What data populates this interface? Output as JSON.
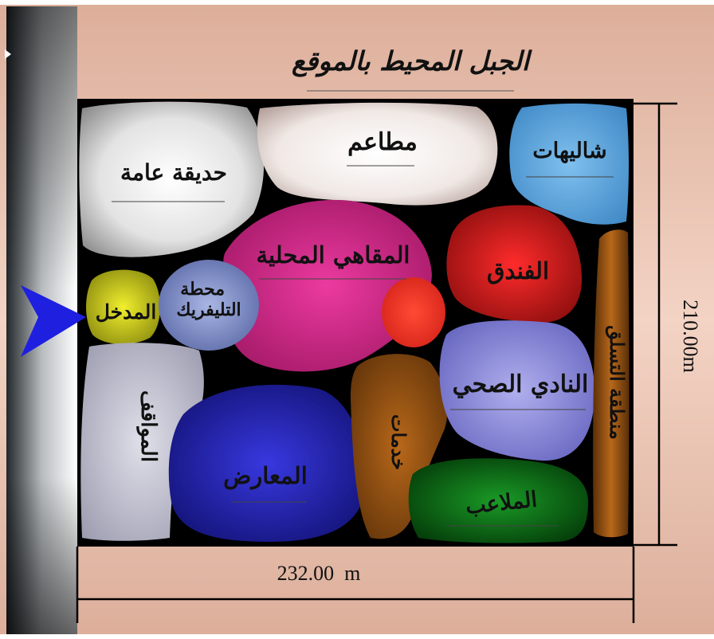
{
  "title": "الجبل المحيط بالموقع",
  "dimensions": {
    "width": "232.00  m",
    "height": "210.00m"
  },
  "zones": [
    {
      "id": "public-garden",
      "label": "حديقة عامة",
      "color": "#e6e6e6"
    },
    {
      "id": "restaurants",
      "label": "مطاعم",
      "color": "#f2ebe8"
    },
    {
      "id": "chalets",
      "label": "شاليهات",
      "color": "#5ea9de"
    },
    {
      "id": "local-cafes",
      "label": "المقاهي المحلية",
      "color": "#dd2f92"
    },
    {
      "id": "hotel",
      "label": "الفندق",
      "color": "#d71e1e"
    },
    {
      "id": "red-circle",
      "label": "",
      "color": "#ff3b25"
    },
    {
      "id": "entrance",
      "label": "المدخل",
      "color": "#d6d61d"
    },
    {
      "id": "cable-car-station",
      "label": "محطة التليفريك",
      "color": "#8a9cd2"
    },
    {
      "id": "parking",
      "label": "المواقف",
      "color": "#c2c2d2"
    },
    {
      "id": "exhibitions",
      "label": "المعارض",
      "color": "#2b2bd0"
    },
    {
      "id": "services",
      "label": "خدمات",
      "color": "#a35a12"
    },
    {
      "id": "health-club",
      "label": "النادي الصحي",
      "color": "#9a99e8"
    },
    {
      "id": "playgrounds",
      "label": "الملاعب",
      "color": "#13871f"
    },
    {
      "id": "climbing-area",
      "label": "منطقة التسلق",
      "color": "#a35a12"
    }
  ],
  "colors": {
    "mountain": "#e6b9a4",
    "site_background": "#000000",
    "entrance_arrow": "#1f1fe0",
    "road": "#7a7d80"
  },
  "icons": [
    "entrance-arrow-icon"
  ]
}
